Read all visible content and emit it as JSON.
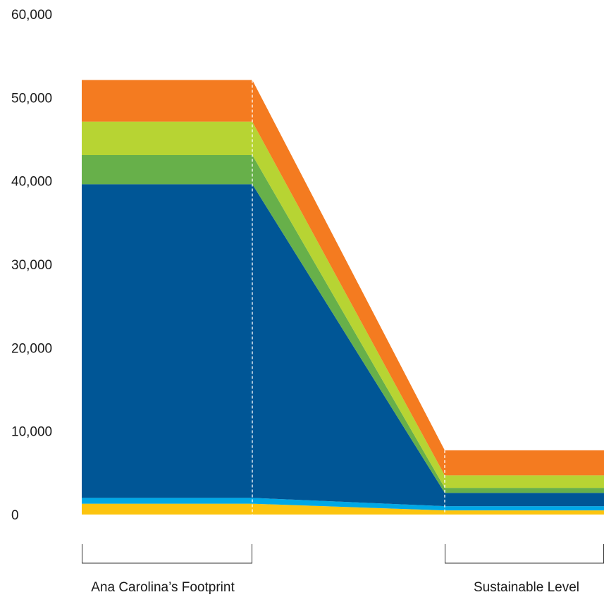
{
  "chart_data": {
    "type": "area",
    "stacked": true,
    "title": "",
    "xlabel": "",
    "ylabel": "",
    "ylim": [
      0,
      60000
    ],
    "yticks": [
      0,
      10000,
      20000,
      30000,
      40000,
      50000,
      60000
    ],
    "ytick_labels": [
      "0",
      "10,000",
      "20,000",
      "30,000",
      "40,000",
      "50,000",
      "60,000"
    ],
    "grid": false,
    "legend": "none",
    "categories": [
      "Ana Carolina’s Footprint",
      "Sustainable Level"
    ],
    "series": [
      {
        "color": "#fcc40f",
        "values": [
          1300,
          500
        ]
      },
      {
        "color": "#00a8e6",
        "values": [
          700,
          500
        ]
      },
      {
        "color": "#005696",
        "values": [
          37600,
          1600
        ]
      },
      {
        "color": "#67b04a",
        "values": [
          3500,
          600
        ]
      },
      {
        "color": "#b7d433",
        "values": [
          4000,
          1500
        ]
      },
      {
        "color": "#f47b20",
        "values": [
          5000,
          3000
        ]
      }
    ]
  }
}
